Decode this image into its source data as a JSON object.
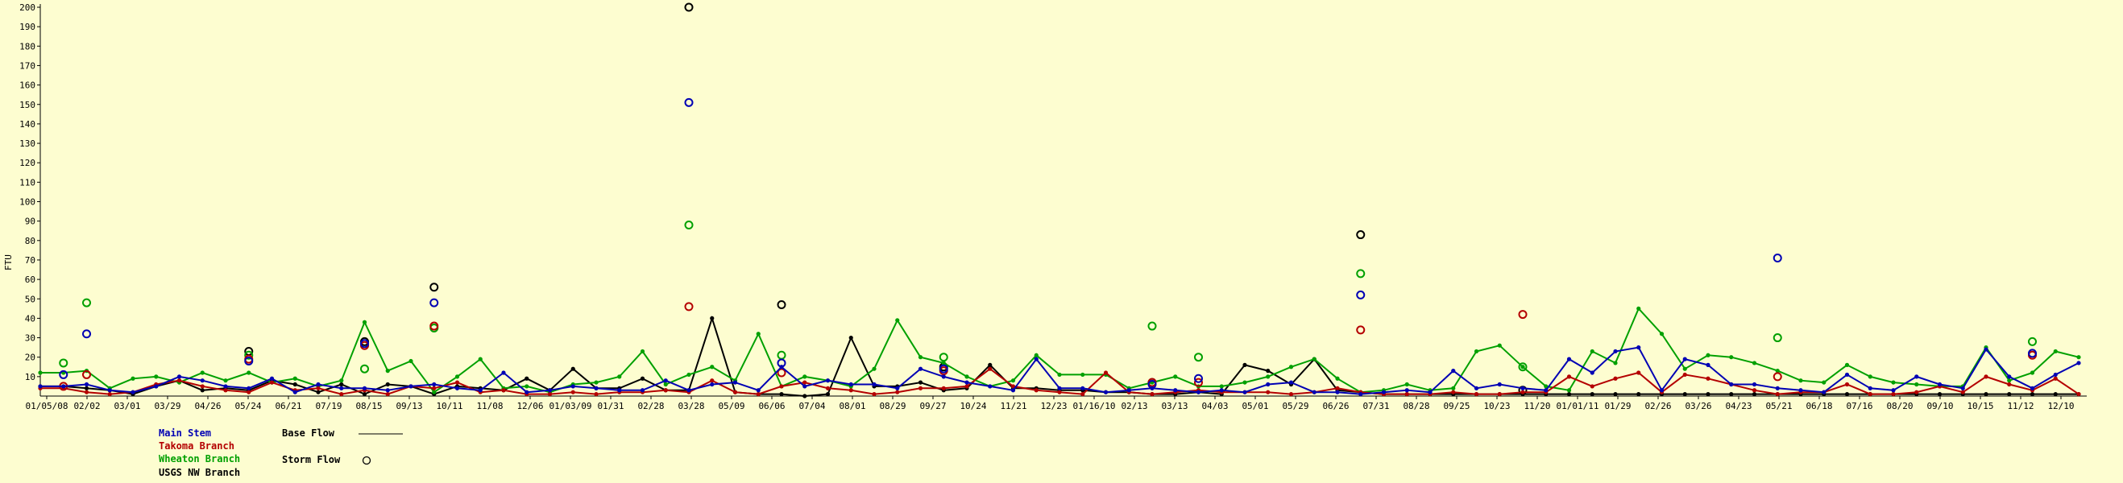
{
  "chart_data": {
    "type": "line",
    "ylabel": "FTU",
    "ylim": [
      0,
      200
    ],
    "yticks": [
      10,
      20,
      30,
      40,
      50,
      60,
      70,
      80,
      90,
      100,
      110,
      120,
      130,
      140,
      150,
      160,
      170,
      180,
      190,
      200
    ],
    "xticks": [
      "01/05/08",
      "02/02",
      "03/01",
      "03/29",
      "04/26",
      "05/24",
      "06/21",
      "07/19",
      "08/15",
      "09/13",
      "10/11",
      "11/08",
      "12/06",
      "01/03/09",
      "01/31",
      "02/28",
      "03/28",
      "05/09",
      "06/06",
      "07/04",
      "08/01",
      "08/29",
      "09/27",
      "10/24",
      "11/21",
      "12/23",
      "01/16/10",
      "02/13",
      "03/13",
      "04/03",
      "05/01",
      "05/29",
      "06/26",
      "07/31",
      "08/28",
      "09/25",
      "10/23",
      "11/20",
      "01/01/11",
      "01/29",
      "02/26",
      "03/26",
      "04/23",
      "05/21",
      "06/18",
      "07/16",
      "08/20",
      "09/10",
      "10/15",
      "11/12",
      "12/10"
    ],
    "x_range": [
      0,
      88
    ],
    "series": [
      {
        "name": "Main Stem",
        "color": "#0000b4",
        "base_x": [
          0,
          1,
          2,
          3,
          4,
          5,
          6,
          7,
          8,
          9,
          10,
          11,
          12,
          13,
          14,
          15,
          16,
          17,
          18,
          19,
          20,
          21,
          22,
          23,
          24,
          25,
          26,
          27,
          28,
          29,
          30,
          31,
          32,
          33,
          34,
          35,
          36,
          37,
          38,
          39,
          40,
          41,
          42,
          43,
          44,
          45,
          46,
          47,
          48,
          49,
          50,
          51,
          52,
          53,
          54,
          55,
          56,
          57,
          58,
          59,
          60,
          61,
          62,
          63,
          64,
          65,
          66,
          67,
          68,
          69,
          70,
          71,
          72,
          73,
          74,
          75,
          76,
          77,
          78,
          79,
          80,
          81,
          82,
          83,
          84,
          85,
          86,
          87,
          88
        ],
        "base_y": [
          5,
          5,
          6,
          3,
          2,
          5,
          10,
          8,
          5,
          4,
          9,
          2,
          6,
          4,
          4,
          3,
          5,
          6,
          4,
          3,
          12,
          2,
          3,
          5,
          4,
          3,
          3,
          8,
          3,
          6,
          7,
          3,
          15,
          5,
          8,
          6,
          6,
          4,
          14,
          10,
          7,
          5,
          3,
          19,
          4,
          4,
          2,
          3,
          4,
          3,
          2,
          3,
          2,
          6,
          7,
          2,
          2,
          1,
          2,
          3,
          2,
          13,
          4,
          6,
          4,
          3,
          19,
          12,
          23,
          25,
          3,
          19,
          16,
          6,
          6,
          4,
          3,
          2,
          11,
          4,
          3,
          10,
          6,
          4,
          24,
          10,
          4,
          11,
          17
        ],
        "storm_x": [
          1,
          2,
          9,
          14,
          17,
          28,
          32,
          39,
          48,
          50,
          57,
          75,
          86
        ],
        "storm_y": [
          11,
          32,
          18,
          27,
          48,
          151,
          17,
          14,
          6,
          9,
          52,
          71,
          22
        ]
      },
      {
        "name": "Takoma Branch",
        "color": "#b40000",
        "base_x": [
          0,
          1,
          2,
          3,
          4,
          5,
          6,
          7,
          8,
          9,
          10,
          11,
          12,
          13,
          14,
          15,
          16,
          17,
          18,
          19,
          20,
          21,
          22,
          23,
          24,
          25,
          26,
          27,
          28,
          29,
          30,
          31,
          32,
          33,
          34,
          35,
          36,
          37,
          38,
          39,
          40,
          41,
          42,
          43,
          44,
          45,
          46,
          47,
          48,
          49,
          50,
          51,
          52,
          53,
          54,
          55,
          56,
          57,
          58,
          59,
          60,
          61,
          62,
          63,
          64,
          65,
          66,
          67,
          68,
          69,
          70,
          71,
          72,
          73,
          74,
          75,
          76,
          77,
          78,
          79,
          80,
          81,
          82,
          83,
          84,
          85,
          86,
          87,
          88
        ],
        "base_y": [
          4,
          4,
          2,
          1,
          2,
          6,
          8,
          5,
          3,
          2,
          7,
          3,
          4,
          1,
          3,
          1,
          5,
          4,
          7,
          2,
          3,
          1,
          1,
          2,
          1,
          2,
          2,
          3,
          2,
          8,
          2,
          1,
          5,
          7,
          4,
          3,
          1,
          2,
          4,
          4,
          5,
          14,
          5,
          3,
          2,
          1,
          12,
          2,
          1,
          2,
          3,
          2,
          2,
          2,
          1,
          2,
          4,
          2,
          1,
          1,
          1,
          2,
          1,
          1,
          2,
          2,
          10,
          5,
          9,
          12,
          2,
          11,
          9,
          6,
          3,
          1,
          2,
          2,
          6,
          1,
          1,
          2,
          5,
          2,
          10,
          6,
          3,
          9,
          1
        ],
        "storm_x": [
          1,
          2,
          9,
          14,
          17,
          28,
          32,
          39,
          48,
          50,
          57,
          64,
          75,
          86
        ],
        "storm_y": [
          5,
          11,
          19,
          26,
          36,
          46,
          12,
          13,
          7,
          7,
          34,
          42,
          10,
          21
        ]
      },
      {
        "name": "Wheaton Branch",
        "color": "#00a000",
        "base_x": [
          0,
          1,
          2,
          3,
          4,
          5,
          6,
          7,
          8,
          9,
          10,
          11,
          12,
          13,
          14,
          15,
          16,
          17,
          18,
          19,
          20,
          21,
          22,
          23,
          24,
          25,
          26,
          27,
          28,
          29,
          30,
          31,
          32,
          33,
          34,
          35,
          36,
          37,
          38,
          39,
          40,
          41,
          42,
          43,
          44,
          45,
          46,
          47,
          48,
          49,
          50,
          51,
          52,
          53,
          54,
          55,
          56,
          57,
          58,
          59,
          60,
          61,
          62,
          63,
          64,
          65,
          66,
          67,
          68,
          69,
          70,
          71,
          72,
          73,
          74,
          75,
          76,
          77,
          78,
          79,
          80,
          81,
          82,
          83,
          84,
          85,
          86,
          87,
          88
        ],
        "base_y": [
          12,
          12,
          13,
          4,
          9,
          10,
          7,
          12,
          8,
          12,
          7,
          9,
          5,
          8,
          38,
          13,
          18,
          2,
          10,
          19,
          4,
          5,
          2,
          6,
          7,
          10,
          23,
          6,
          11,
          15,
          8,
          32,
          5,
          10,
          8,
          5,
          14,
          39,
          20,
          17,
          10,
          5,
          8,
          21,
          11,
          11,
          11,
          4,
          7,
          10,
          5,
          5,
          7,
          10,
          15,
          19,
          9,
          2,
          3,
          6,
          3,
          4,
          23,
          26,
          15,
          5,
          3,
          23,
          17,
          45,
          32,
          14,
          21,
          20,
          17,
          13,
          8,
          7,
          16,
          10,
          7,
          6,
          5,
          5,
          25,
          8,
          12,
          23,
          20
        ],
        "storm_x": [
          1,
          2,
          9,
          14,
          17,
          28,
          32,
          39,
          48,
          50,
          57,
          64,
          75,
          86
        ],
        "storm_y": [
          17,
          48,
          21,
          14,
          35,
          88,
          21,
          20,
          36,
          20,
          63,
          15,
          30,
          28
        ]
      },
      {
        "name": "USGS NW Branch",
        "color": "#000000",
        "base_x": [
          0,
          1,
          2,
          3,
          4,
          5,
          6,
          7,
          8,
          9,
          10,
          11,
          12,
          13,
          14,
          15,
          16,
          17,
          18,
          19,
          20,
          21,
          22,
          23,
          24,
          25,
          26,
          27,
          28,
          29,
          30,
          31,
          32,
          33,
          34,
          35,
          36,
          37,
          38,
          39,
          40,
          41,
          42,
          43,
          44,
          45,
          46,
          47,
          48,
          49,
          50,
          51,
          52,
          53,
          54,
          55,
          56,
          57,
          58,
          59,
          60,
          61,
          62,
          63,
          64,
          65,
          66,
          67,
          68,
          69,
          70,
          71,
          72,
          73,
          74,
          75,
          76,
          77,
          78,
          79,
          80,
          81,
          82,
          83,
          84,
          85,
          86,
          87,
          88
        ],
        "base_y": [
          5,
          5,
          4,
          3,
          1,
          5,
          8,
          3,
          4,
          3,
          8,
          6,
          2,
          6,
          1,
          6,
          5,
          1,
          5,
          4,
          3,
          9,
          3,
          14,
          4,
          4,
          9,
          3,
          3,
          40,
          2,
          1,
          1,
          0,
          1,
          30,
          5,
          5,
          7,
          3,
          4,
          16,
          4,
          4,
          3,
          3,
          2,
          2,
          1,
          1,
          2,
          1,
          16,
          13,
          6,
          19,
          3,
          2,
          1,
          1,
          1,
          1,
          1,
          1,
          1,
          1,
          1,
          1,
          1,
          1,
          1,
          1,
          1,
          1,
          1,
          1,
          1,
          1,
          1,
          1,
          1,
          1,
          1,
          1,
          1,
          1,
          1,
          1,
          1
        ],
        "storm_x": [
          9,
          14,
          17,
          28,
          32,
          39,
          48,
          57,
          64
        ],
        "storm_y": [
          23,
          28,
          56,
          200,
          47,
          15,
          7,
          83,
          3
        ]
      }
    ],
    "legend": {
      "series_names": [
        "Main Stem",
        "Takoma Branch",
        "Wheaton Branch",
        "USGS NW Branch"
      ],
      "base_flow_label": "Base Flow",
      "storm_flow_label": "Storm Flow"
    },
    "grid": false
  }
}
